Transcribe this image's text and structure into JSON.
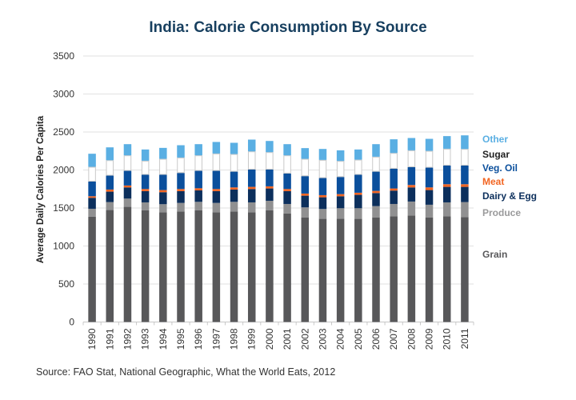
{
  "chart_data": {
    "type": "bar",
    "stacked": true,
    "title": "India: Calorie Consumption By Source",
    "xlabel": "",
    "ylabel": "Average Daily Calories Per Capita",
    "ylim": [
      0,
      3500
    ],
    "yticks": [
      0,
      500,
      1000,
      1500,
      2000,
      2500,
      3000,
      3500
    ],
    "grid": true,
    "legend_position": "right",
    "source": "Source: FAO Stat, National Geographic, What the World Eats, 2012",
    "categories": [
      "1990",
      "1991",
      "1992",
      "1993",
      "1994",
      "1995",
      "1996",
      "1997",
      "1998",
      "1999",
      "2000",
      "2001",
      "2002",
      "2003",
      "2004",
      "2005",
      "2006",
      "2007",
      "2008",
      "2009",
      "2010",
      "2011"
    ],
    "series": [
      {
        "name": "Grain",
        "color": "#58585a",
        "label_color": "#58585a",
        "values": [
          1385,
          1473,
          1515,
          1469,
          1444,
          1455,
          1469,
          1444,
          1455,
          1444,
          1469,
          1427,
          1374,
          1357,
          1360,
          1357,
          1374,
          1392,
          1402,
          1374,
          1392,
          1381
        ]
      },
      {
        "name": "Produce",
        "color": "#909091",
        "label_color": "#9a9a9b",
        "values": [
          105,
          105,
          109,
          105,
          106,
          112,
          112,
          123,
          126,
          130,
          126,
          126,
          134,
          130,
          137,
          140,
          151,
          161,
          183,
          169,
          182,
          197
        ]
      },
      {
        "name": "Dairy & Egg",
        "color": "#0c2f5c",
        "label_color": "#0c2f5c",
        "values": [
          144,
          137,
          147,
          148,
          158,
          155,
          151,
          155,
          162,
          176,
          162,
          169,
          154,
          154,
          158,
          176,
          172,
          176,
          186,
          193,
          204,
          200
        ]
      },
      {
        "name": "Meat",
        "color": "#f26522",
        "label_color": "#f26522",
        "values": [
          21,
          28,
          25,
          28,
          28,
          28,
          28,
          28,
          28,
          28,
          28,
          28,
          28,
          28,
          28,
          28,
          28,
          28,
          32,
          35,
          35,
          35
        ]
      },
      {
        "name": "Veg. Oil",
        "color": "#0b4f9c",
        "label_color": "#0b4f9c",
        "values": [
          193,
          183,
          193,
          187,
          201,
          211,
          229,
          239,
          207,
          228,
          221,
          204,
          229,
          225,
          225,
          236,
          253,
          260,
          235,
          260,
          246,
          246
        ]
      },
      {
        "name": "Sugar",
        "color": "#ffffff",
        "label_color": "#222222",
        "values": [
          194,
          203,
          204,
          185,
          210,
          203,
          204,
          228,
          232,
          239,
          229,
          239,
          228,
          239,
          211,
          199,
          197,
          207,
          221,
          221,
          221,
          218
        ]
      },
      {
        "name": "Other",
        "color": "#5aafe3",
        "label_color": "#5aafe3",
        "values": [
          172,
          169,
          147,
          148,
          144,
          162,
          147,
          152,
          148,
          155,
          147,
          147,
          141,
          144,
          140,
          134,
          165,
          180,
          162,
          158,
          166,
          179
        ]
      }
    ]
  }
}
